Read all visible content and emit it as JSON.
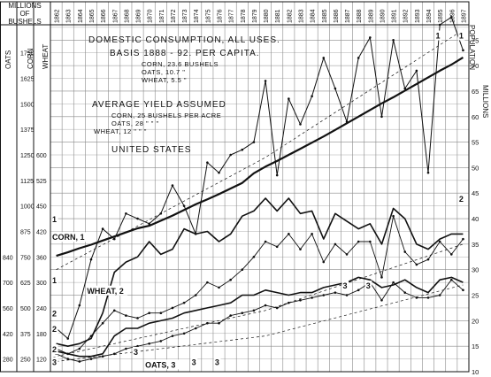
{
  "chart_data": {
    "type": "line",
    "title": "DOMESTIC CONSUMPTION, ALL USES.",
    "subtitle": "BASIS 1888 - 92. PER CAPITA.",
    "per_capita": [
      "CORN, 23.6 BUSHELS",
      "OATS, 10.7 \"",
      "WHEAT, 5.5 \""
    ],
    "yield_title": "AVERAGE YIELD ASSUMED",
    "yield_rows": [
      "CORN, 25 BUSHELS PER ACRE",
      "OATS, 28 \"  \"  \"",
      "WHEAT, 12 \"  \"  \""
    ],
    "region": "UNITED STATES",
    "header_left": [
      "MILLIONS",
      "OF",
      "BUSHELS"
    ],
    "axis_col_labels": {
      "oats": "OATS",
      "corn": "CORN",
      "wheat": "WHEAT"
    },
    "right_axis_label": "MILLIONS",
    "population_label": "POPULATION",
    "x": [
      "1862",
      "1863",
      "1864",
      "1865",
      "1866",
      "1867",
      "1868",
      "1869",
      "1870",
      "1871",
      "1872",
      "1873",
      "1874",
      "1875",
      "1876",
      "1877",
      "1878",
      "1879",
      "1880",
      "1881",
      "1882",
      "1883",
      "1884",
      "1885",
      "1886",
      "1887",
      "1888",
      "1889",
      "1890",
      "1891",
      "1892",
      "1893",
      "1894",
      "1895",
      "1896",
      "1897"
    ],
    "y_scales": {
      "corn": [
        "1750",
        "1625",
        "1500",
        "1375",
        "1250",
        "1125",
        "1000",
        "875",
        "750",
        "625",
        "500",
        "375",
        "250"
      ],
      "oats": [
        "840",
        "700",
        "560",
        "420",
        "280"
      ],
      "wheat": [
        "600",
        "525",
        "450",
        "420",
        "360",
        "300",
        "240",
        "180",
        "120"
      ],
      "population": [
        "75",
        "70",
        "65",
        "60",
        "55",
        "50",
        "45",
        "40",
        "35",
        "30",
        "25",
        "20",
        "15",
        "10"
      ]
    },
    "ylim_population": [
      10,
      78
    ],
    "series": [
      {
        "name": "POPULATION",
        "values": [
          32.7,
          33.4,
          34.2,
          34.9,
          35.7,
          36.5,
          37.3,
          38.1,
          38.6,
          39.6,
          40.6,
          41.7,
          42.8,
          43.8,
          44.8,
          45.9,
          47.0,
          48.9,
          50.2,
          51.3,
          52.5,
          53.7,
          54.9,
          56.1,
          57.4,
          58.7,
          60.0,
          61.3,
          62.6,
          63.8,
          65.1,
          66.4,
          67.7,
          69.0,
          70.2,
          71.6
        ]
      },
      {
        "name": "CORN",
        "values": [
          18.5,
          16.5,
          23.0,
          32.0,
          38.0,
          36.0,
          41.0,
          40.0,
          39.0,
          41.0,
          46.5,
          42.5,
          37.0,
          51.0,
          49.0,
          52.5,
          53.5,
          55.0,
          67.0,
          48.5,
          63.5,
          58.5,
          64.0,
          71.5,
          65.5,
          59.0,
          71.5,
          75.5,
          60.0,
          75.0,
          65.5,
          69.0,
          49.0,
          78.0,
          79.5,
          73.0
        ]
      },
      {
        "name": "WHEAT",
        "values": [
          15.5,
          15.0,
          15.5,
          16.5,
          21.5,
          29.5,
          31.5,
          32.5,
          35.5,
          33.0,
          34.0,
          38.0,
          37.0,
          37.5,
          35.5,
          37.0,
          40.5,
          41.5,
          44.0,
          41.5,
          44.0,
          41.0,
          41.5,
          36.0,
          41.0,
          39.5,
          38.0,
          39.0,
          35.0,
          42.0,
          40.0,
          35.0,
          34.0,
          36.0,
          37.0,
          37.0
        ]
      },
      {
        "name": "WHEAT-RATIO",
        "values": [
          14.5,
          13.5,
          14.5,
          17.0,
          19.5,
          22.0,
          21.0,
          20.5,
          21.5,
          21.5,
          22.5,
          23.5,
          25.0,
          27.5,
          26.5,
          28.0,
          30.0,
          32.5,
          35.5,
          34.5,
          37.0,
          34.0,
          37.0,
          31.5,
          35.0,
          33.0,
          35.5,
          35.5,
          28.5,
          40.5,
          33.5,
          31.0,
          32.0,
          35.5,
          33.0,
          36.0
        ]
      },
      {
        "name": "OATS",
        "values": [
          14.0,
          13.5,
          13.0,
          13.0,
          13.5,
          17.0,
          18.5,
          18.5,
          19.5,
          20.0,
          20.5,
          21.5,
          22.0,
          22.5,
          23.0,
          23.5,
          25.0,
          25.0,
          26.0,
          25.5,
          25.0,
          25.5,
          25.5,
          26.5,
          27.0,
          27.5,
          28.5,
          28.0,
          26.5,
          27.0,
          28.0,
          26.5,
          25.5,
          28.0,
          28.5,
          27.5
        ]
      },
      {
        "name": "OATS-RATIO",
        "values": [
          13.5,
          12.5,
          12.0,
          12.5,
          13.0,
          13.5,
          14.5,
          15.0,
          15.5,
          16.0,
          17.0,
          17.5,
          18.5,
          19.5,
          19.5,
          21.0,
          21.5,
          22.0,
          23.0,
          22.5,
          23.5,
          24.0,
          24.5,
          25.0,
          25.5,
          25.0,
          26.0,
          27.5,
          24.0,
          27.5,
          25.5,
          24.5,
          24.5,
          25.0,
          28.0,
          26.0
        ]
      },
      {
        "name": "REQ-CORN",
        "values": [
          {
            "x": "1862",
            "y": 30.0
          },
          {
            "x": "1880",
            "y": 52.0
          },
          {
            "x": "1897",
            "y": 77.0
          }
        ]
      },
      {
        "name": "REQ-WHEAT",
        "values": [
          {
            "x": "1862",
            "y": 13.0
          },
          {
            "x": "1880",
            "y": 22.0
          },
          {
            "x": "1897",
            "y": 35.0
          }
        ]
      },
      {
        "name": "REQ-OATS",
        "values": [
          {
            "x": "1862",
            "y": 12.0
          },
          {
            "x": "1880",
            "y": 17.0
          },
          {
            "x": "1897",
            "y": 27.0
          }
        ]
      }
    ],
    "line_markers": [
      {
        "text": "1",
        "x": "1862",
        "y": 40.0
      },
      {
        "text": "CORN, 1",
        "x": "1862",
        "y": 36.5
      },
      {
        "text": "1",
        "x": "1862",
        "y": 28.0
      },
      {
        "text": "WHEAT, 2",
        "x": "1865",
        "y": 26.0
      },
      {
        "text": "2",
        "x": "1862",
        "y": 21.5
      },
      {
        "text": "2",
        "x": "1862",
        "y": 18.5
      },
      {
        "text": "2",
        "x": "1862",
        "y": 14.5
      },
      {
        "text": "3",
        "x": "1862",
        "y": 12.5
      },
      {
        "text": "3",
        "x": "1862",
        "y": 12.0
      },
      {
        "text": "3",
        "x": "1869",
        "y": 14.0
      },
      {
        "text": "OATS, 3",
        "x": "1870",
        "y": 11.5
      },
      {
        "text": "3",
        "x": "1874",
        "y": 12.0
      },
      {
        "text": "3",
        "x": "1876",
        "y": 12.0
      },
      {
        "text": "3",
        "x": "1887",
        "y": 27.0
      },
      {
        "text": "3",
        "x": "1889",
        "y": 27.0
      },
      {
        "text": "2",
        "x": "1897",
        "y": 44.0
      },
      {
        "text": "1",
        "x": "1895",
        "y": 76.0
      },
      {
        "text": "1",
        "x": "1897",
        "y": 76.0
      }
    ],
    "colors": {
      "ink": "#111111",
      "grid": "#8a8a8a",
      "background": "#ffffff"
    }
  }
}
